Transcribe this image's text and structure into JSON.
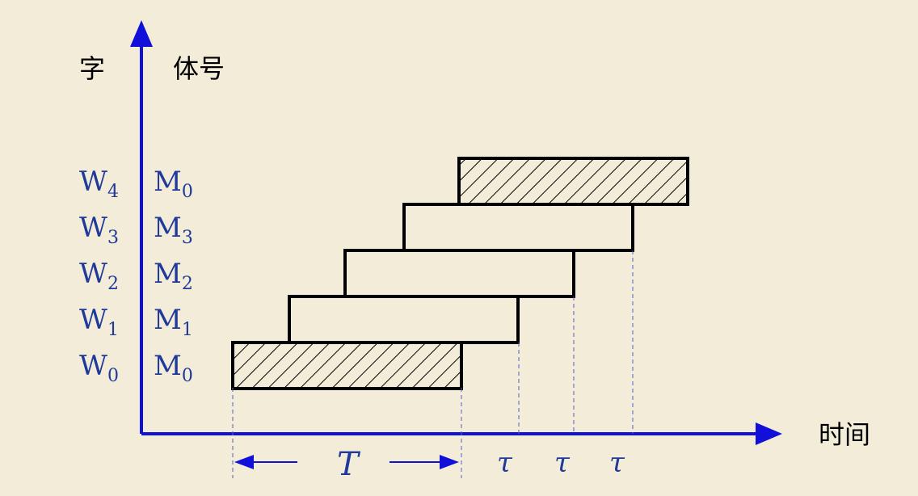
{
  "axes": {
    "y_label_left": "字",
    "y_label_right": "体号",
    "x_label": "时间",
    "axis_color": "#1010D8"
  },
  "rows": [
    {
      "word": "W",
      "word_sub": "0",
      "module": "M",
      "module_sub": "0",
      "hatched": true
    },
    {
      "word": "W",
      "word_sub": "1",
      "module": "M",
      "module_sub": "1",
      "hatched": false
    },
    {
      "word": "W",
      "word_sub": "2",
      "module": "M",
      "module_sub": "2",
      "hatched": false
    },
    {
      "word": "W",
      "word_sub": "3",
      "module": "M",
      "module_sub": "3",
      "hatched": false
    },
    {
      "word": "W",
      "word_sub": "4",
      "module": "M",
      "module_sub": "0",
      "hatched": true
    }
  ],
  "timing": {
    "period_label": "T",
    "tau_labels": [
      "τ",
      "τ",
      "τ"
    ]
  },
  "colors": {
    "background": "#F2ECD8",
    "label_blue": "#1F3A9A",
    "bar_stroke": "#000000"
  }
}
